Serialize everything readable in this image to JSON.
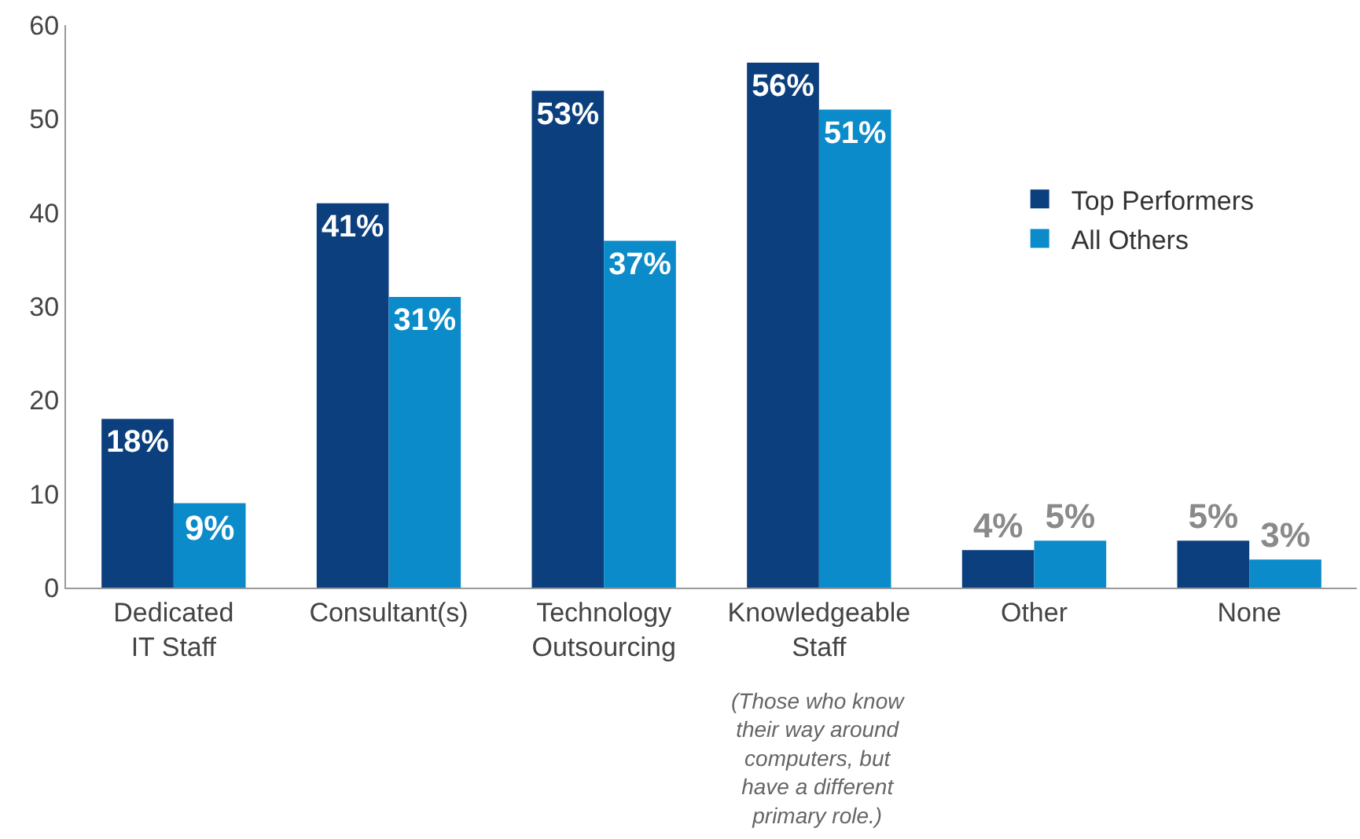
{
  "chart_data": {
    "type": "bar",
    "categories": [
      "Dedicated\nIT Staff",
      "Consultant(s)",
      "Technology\nOutsourcing",
      "Knowledgeable\nStaff",
      "Other",
      "None"
    ],
    "series": [
      {
        "name": "Top Performers",
        "color": "#0c3f7e",
        "values": [
          18,
          41,
          53,
          56,
          4,
          5
        ],
        "value_labels": [
          "18%",
          "41%",
          "53%",
          "56%",
          "4%",
          "5%"
        ]
      },
      {
        "name": "All Others",
        "color": "#0b8bc9",
        "values": [
          9,
          31,
          37,
          51,
          5,
          3
        ],
        "value_labels": [
          "9%",
          "31%",
          "37%",
          "51%",
          "5%",
          "3%"
        ]
      }
    ],
    "ylim": [
      0,
      60
    ],
    "yticks": [
      0,
      10,
      20,
      30,
      40,
      50,
      60
    ],
    "grid": false,
    "legend": "top right",
    "annotations": [
      "(Those who know\ntheir way around\ncomputers, but\nhave a different\nprimary role.)"
    ]
  }
}
